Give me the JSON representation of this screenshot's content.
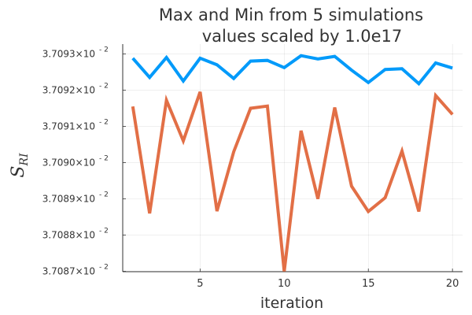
{
  "chart_data": {
    "type": "line",
    "title": [
      "Max and Min from 5 simulations",
      "values scaled by 1.0e17"
    ],
    "xlabel": "iteration",
    "ylabel": "S",
    "ylabel_sub": "RI",
    "xlim": [
      0.4,
      20.6
    ],
    "ylim": [
      3.708699,
      3.709327
    ],
    "x_ticks": [
      5,
      10,
      15,
      20
    ],
    "y_ticks": [
      {
        "value": 3.7087,
        "mantissa": "3.7087×10",
        "exponent": "- 2"
      },
      {
        "value": 3.7088,
        "mantissa": "3.7088×10",
        "exponent": "- 2"
      },
      {
        "value": 3.7089,
        "mantissa": "3.7089×10",
        "exponent": "- 2"
      },
      {
        "value": 3.709,
        "mantissa": "3.7090×10",
        "exponent": "- 2"
      },
      {
        "value": 3.7091,
        "mantissa": "3.7091×10",
        "exponent": "- 2"
      },
      {
        "value": 3.7092,
        "mantissa": "3.7092×10",
        "exponent": "- 2"
      },
      {
        "value": 3.7093,
        "mantissa": "3.7093×10",
        "exponent": "- 2"
      }
    ],
    "grid": true,
    "legend": "none",
    "x": [
      1,
      2,
      3,
      4,
      5,
      6,
      7,
      8,
      9,
      10,
      11,
      12,
      13,
      14,
      15,
      16,
      17,
      18,
      19,
      20
    ],
    "series": [
      {
        "color": "#009AFA",
        "values": [
          3.709288,
          3.709235,
          3.70929,
          3.709225,
          3.709288,
          3.70927,
          3.709232,
          3.70928,
          3.709282,
          3.709262,
          3.709295,
          3.709286,
          3.709293,
          3.709255,
          3.709221,
          3.709257,
          3.709259,
          3.709218,
          3.709275,
          3.709261
        ]
      },
      {
        "color": "#E26F46",
        "values": [
          3.709155,
          3.70886,
          3.709172,
          3.70906,
          3.709195,
          3.708866,
          3.70903,
          3.70915,
          3.709156,
          3.7087,
          3.709088,
          3.7089,
          3.709152,
          3.708935,
          3.708865,
          3.708903,
          3.709032,
          3.708865,
          3.709185,
          3.709133
        ]
      }
    ]
  }
}
